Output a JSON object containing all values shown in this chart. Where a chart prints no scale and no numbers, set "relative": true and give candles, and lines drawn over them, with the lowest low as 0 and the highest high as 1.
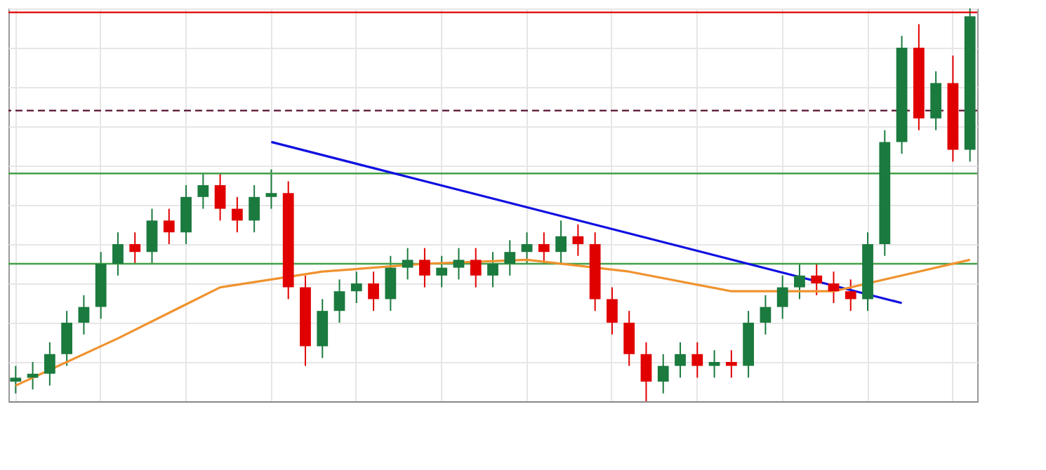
{
  "chart_data": {
    "type": "candlestick",
    "relative": true,
    "grid": true,
    "categories": [
      null,
      null,
      null,
      null,
      null,
      null,
      null,
      null,
      null,
      null,
      null,
      null,
      null,
      null,
      null,
      null,
      null,
      null,
      null,
      null,
      null,
      null,
      null,
      null,
      null,
      null,
      null,
      null,
      null,
      null,
      null,
      null,
      null,
      null,
      null,
      null,
      null,
      null,
      null,
      null,
      null,
      null,
      null,
      null,
      null,
      null,
      null,
      null,
      null,
      null,
      null,
      null,
      null,
      null,
      null,
      null,
      null
    ],
    "ohlc": [
      [
        0.05,
        0.09,
        0.02,
        0.06
      ],
      [
        0.06,
        0.1,
        0.03,
        0.07
      ],
      [
        0.07,
        0.15,
        0.04,
        0.12
      ],
      [
        0.12,
        0.23,
        0.09,
        0.2
      ],
      [
        0.2,
        0.27,
        0.17,
        0.24
      ],
      [
        0.24,
        0.38,
        0.21,
        0.35
      ],
      [
        0.35,
        0.43,
        0.32,
        0.4
      ],
      [
        0.4,
        0.43,
        0.35,
        0.38
      ],
      [
        0.38,
        0.49,
        0.35,
        0.46
      ],
      [
        0.46,
        0.49,
        0.4,
        0.43
      ],
      [
        0.43,
        0.55,
        0.4,
        0.52
      ],
      [
        0.52,
        0.58,
        0.49,
        0.55
      ],
      [
        0.55,
        0.58,
        0.46,
        0.49
      ],
      [
        0.49,
        0.52,
        0.43,
        0.46
      ],
      [
        0.46,
        0.55,
        0.43,
        0.52
      ],
      [
        0.52,
        0.59,
        0.49,
        0.53
      ],
      [
        0.53,
        0.56,
        0.26,
        0.29
      ],
      [
        0.29,
        0.32,
        0.09,
        0.14
      ],
      [
        0.14,
        0.26,
        0.11,
        0.23
      ],
      [
        0.23,
        0.31,
        0.2,
        0.28
      ],
      [
        0.28,
        0.33,
        0.25,
        0.3
      ],
      [
        0.3,
        0.33,
        0.23,
        0.26
      ],
      [
        0.26,
        0.37,
        0.23,
        0.34
      ],
      [
        0.34,
        0.39,
        0.31,
        0.36
      ],
      [
        0.36,
        0.39,
        0.29,
        0.32
      ],
      [
        0.32,
        0.37,
        0.29,
        0.34
      ],
      [
        0.34,
        0.39,
        0.31,
        0.36
      ],
      [
        0.36,
        0.39,
        0.29,
        0.32
      ],
      [
        0.32,
        0.38,
        0.29,
        0.35
      ],
      [
        0.35,
        0.41,
        0.32,
        0.38
      ],
      [
        0.38,
        0.43,
        0.35,
        0.4
      ],
      [
        0.4,
        0.43,
        0.35,
        0.38
      ],
      [
        0.38,
        0.46,
        0.35,
        0.42
      ],
      [
        0.42,
        0.45,
        0.37,
        0.4
      ],
      [
        0.4,
        0.43,
        0.23,
        0.26
      ],
      [
        0.26,
        0.29,
        0.17,
        0.2
      ],
      [
        0.2,
        0.23,
        0.09,
        0.12
      ],
      [
        0.12,
        0.15,
        0.0,
        0.05
      ],
      [
        0.05,
        0.12,
        0.02,
        0.09
      ],
      [
        0.09,
        0.15,
        0.06,
        0.12
      ],
      [
        0.12,
        0.15,
        0.06,
        0.09
      ],
      [
        0.09,
        0.13,
        0.06,
        0.1
      ],
      [
        0.1,
        0.13,
        0.06,
        0.09
      ],
      [
        0.09,
        0.23,
        0.06,
        0.2
      ],
      [
        0.2,
        0.27,
        0.17,
        0.24
      ],
      [
        0.24,
        0.32,
        0.21,
        0.29
      ],
      [
        0.29,
        0.35,
        0.26,
        0.32
      ],
      [
        0.32,
        0.35,
        0.27,
        0.3
      ],
      [
        0.3,
        0.33,
        0.25,
        0.28
      ],
      [
        0.28,
        0.31,
        0.23,
        0.26
      ],
      [
        0.26,
        0.43,
        0.23,
        0.4
      ],
      [
        0.4,
        0.69,
        0.37,
        0.66
      ],
      [
        0.66,
        0.93,
        0.63,
        0.9
      ],
      [
        0.9,
        0.96,
        0.69,
        0.72
      ],
      [
        0.72,
        0.84,
        0.69,
        0.81
      ],
      [
        0.81,
        0.88,
        0.61,
        0.64
      ],
      [
        0.64,
        1,
        0.61,
        0.98
      ]
    ],
    "series": [
      {
        "type": "line",
        "color": "#1010e0",
        "values": [
          null,
          null,
          null,
          null,
          null,
          null,
          null,
          null,
          null,
          null,
          null,
          null,
          null,
          null,
          null,
          0.66,
          null,
          null,
          null,
          null,
          null,
          null,
          null,
          null,
          null,
          null,
          null,
          null,
          null,
          null,
          null,
          null,
          null,
          null,
          null,
          null,
          null,
          null,
          null,
          null,
          null,
          null,
          null,
          null,
          null,
          null,
          null,
          null,
          null,
          null,
          null,
          null,
          0.25,
          null,
          null,
          null,
          null
        ]
      },
      {
        "type": "line",
        "color": "#f0922e",
        "values": [
          0.04,
          null,
          null,
          null,
          null,
          null,
          0.16,
          null,
          null,
          null,
          null,
          null,
          0.29,
          null,
          null,
          null,
          null,
          null,
          0.33,
          null,
          null,
          null,
          null,
          null,
          0.35,
          null,
          null,
          null,
          null,
          null,
          0.36,
          null,
          null,
          null,
          null,
          null,
          0.33,
          null,
          null,
          null,
          null,
          null,
          0.28,
          null,
          null,
          null,
          null,
          null,
          0.28,
          null,
          null,
          null,
          0.32,
          null,
          null,
          null,
          0.36
        ]
      }
    ],
    "ref_lines": [
      {
        "axis": "y",
        "value": 0.99,
        "color": "#e00000",
        "line_style": "solid"
      },
      {
        "axis": "y",
        "value": 0.74,
        "color": "#5a1030",
        "line_style": "dashed"
      },
      {
        "axis": "y",
        "value": 0.58,
        "color": "#43a047",
        "line_style": "solid"
      },
      {
        "axis": "y",
        "value": 0.35,
        "color": "#43a047",
        "line_style": "solid"
      }
    ]
  }
}
